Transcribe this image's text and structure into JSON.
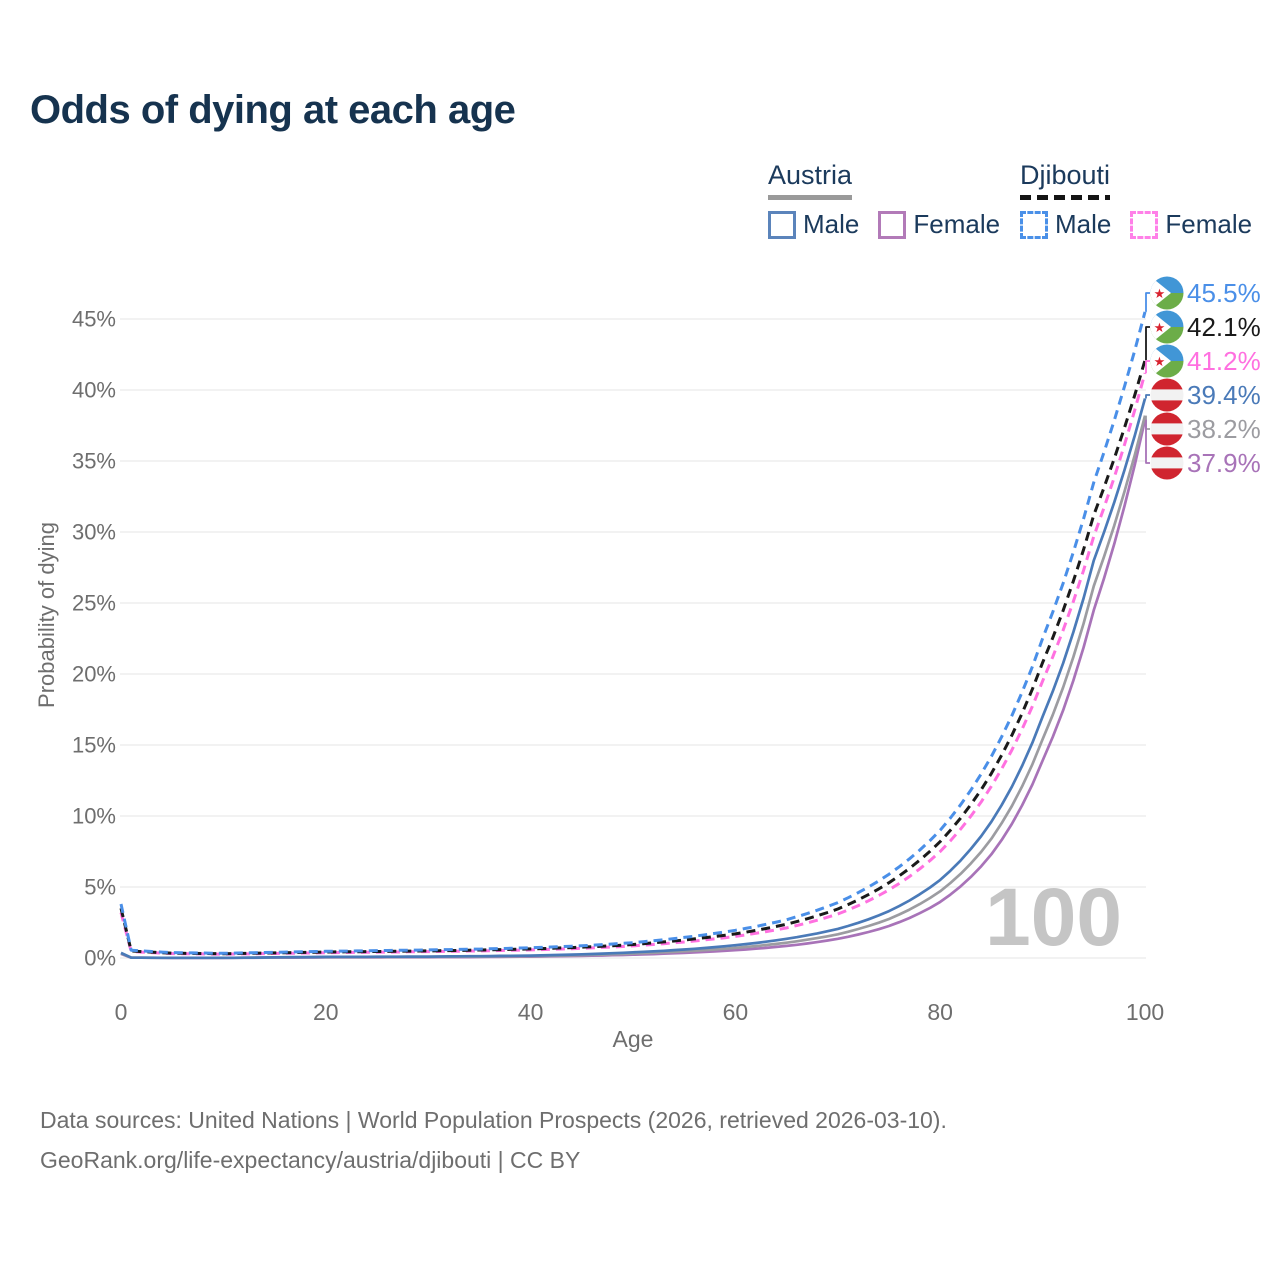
{
  "title": "Odds of dying at each age",
  "watermark_age": "100",
  "legend": {
    "groups": [
      {
        "name": "Austria",
        "underline_style": "solid",
        "underline_color": "#9a9a9a",
        "items": [
          {
            "label": "Male",
            "color": "#5b84bb",
            "dashed": false
          },
          {
            "label": "Female",
            "color": "#b27ab8",
            "dashed": false
          }
        ]
      },
      {
        "name": "Djibouti",
        "underline_style": "dashed",
        "underline_color": "#141414",
        "items": [
          {
            "label": "Male",
            "color": "#4a90e8",
            "dashed": true
          },
          {
            "label": "Female",
            "color": "#ff80e8",
            "dashed": true
          }
        ]
      }
    ]
  },
  "footer": {
    "line1": "Data sources: United Nations | World Population Prospects (2026, retrieved 2026-03-10).",
    "line2": "GeoRank.org/life-expectancy/austria/djibouti | CC BY"
  },
  "colors": {
    "title": "#16334f",
    "axis_text": "#6e6e6e",
    "grid": "#ebebeb",
    "watermark": "#c5c5c5"
  },
  "flags": {
    "austria": {
      "red": "#d0252f",
      "white": "#f2f2f2"
    },
    "djibouti": {
      "blue": "#4196d6",
      "green": "#6cad48",
      "white": "#ffffff",
      "star": "#d8232f"
    }
  },
  "chart_data": {
    "type": "line",
    "title": "Odds of dying at each age",
    "xlabel": "Age",
    "ylabel": "Probability of dying",
    "x_ticks": [
      0,
      20,
      40,
      60,
      80,
      100
    ],
    "y_ticks_pct": [
      0,
      5,
      10,
      15,
      20,
      25,
      30,
      35,
      40,
      45
    ],
    "xlim": [
      0,
      100
    ],
    "ylim_pct": [
      0,
      47
    ],
    "grid": "horizontal-only",
    "legend_position": "top-right",
    "ages": [
      0,
      1,
      5,
      10,
      15,
      20,
      25,
      30,
      35,
      40,
      45,
      50,
      55,
      60,
      65,
      70,
      75,
      80,
      85,
      90,
      95,
      100
    ],
    "series": [
      {
        "name": "Djibouti Male",
        "country": "Djibouti",
        "sex": "Male",
        "color": "#4a8fe8",
        "dashed": true,
        "end_value_pct": 45.5,
        "end_label": "45.5%",
        "values_pct": [
          3.8,
          0.55,
          0.38,
          0.33,
          0.4,
          0.47,
          0.52,
          0.57,
          0.63,
          0.72,
          0.86,
          1.08,
          1.45,
          1.95,
          2.7,
          3.9,
          5.9,
          9.0,
          14.2,
          22.5,
          33.5,
          45.5
        ]
      },
      {
        "name": "Djibouti Both sexes",
        "country": "Djibouti",
        "sex": "Both",
        "color": "#1a1a1a",
        "dashed": true,
        "end_value_pct": 42.1,
        "end_label": "42.1%",
        "values_pct": [
          3.5,
          0.5,
          0.34,
          0.3,
          0.36,
          0.42,
          0.46,
          0.5,
          0.56,
          0.64,
          0.76,
          0.95,
          1.27,
          1.7,
          2.38,
          3.45,
          5.3,
          8.2,
          13.0,
          20.8,
          31.2,
          42.1
        ]
      },
      {
        "name": "Djibouti Female",
        "country": "Djibouti",
        "sex": "Female",
        "color": "#ff70e0",
        "dashed": true,
        "end_value_pct": 41.2,
        "end_label": "41.2%",
        "values_pct": [
          3.2,
          0.46,
          0.31,
          0.27,
          0.32,
          0.37,
          0.41,
          0.45,
          0.5,
          0.57,
          0.68,
          0.85,
          1.13,
          1.52,
          2.12,
          3.1,
          4.8,
          7.5,
          12.1,
          19.5,
          29.7,
          41.2
        ]
      },
      {
        "name": "Austria Male",
        "country": "Austria",
        "sex": "Male",
        "color": "#4a7ab8",
        "dashed": false,
        "end_value_pct": 39.4,
        "end_label": "39.4%",
        "values_pct": [
          0.36,
          0.03,
          0.012,
          0.012,
          0.05,
          0.08,
          0.09,
          0.1,
          0.13,
          0.17,
          0.26,
          0.4,
          0.6,
          0.9,
          1.35,
          2.05,
          3.3,
          5.5,
          9.6,
          17.0,
          28.0,
          39.4
        ]
      },
      {
        "name": "Austria Both sexes",
        "country": "Austria",
        "sex": "Both",
        "color": "#9c9ca1",
        "dashed": false,
        "end_value_pct": 38.2,
        "end_label": "38.2%",
        "values_pct": [
          0.32,
          0.027,
          0.011,
          0.011,
          0.04,
          0.06,
          0.07,
          0.08,
          0.1,
          0.13,
          0.2,
          0.31,
          0.47,
          0.71,
          1.08,
          1.67,
          2.75,
          4.7,
          8.4,
          15.4,
          26.2,
          38.2
        ]
      },
      {
        "name": "Austria Female",
        "country": "Austria",
        "sex": "Female",
        "color": "#a873b8",
        "dashed": false,
        "end_value_pct": 37.9,
        "end_label": "37.9%",
        "values_pct": [
          0.29,
          0.023,
          0.009,
          0.009,
          0.027,
          0.04,
          0.045,
          0.05,
          0.07,
          0.1,
          0.15,
          0.23,
          0.36,
          0.55,
          0.85,
          1.35,
          2.25,
          3.95,
          7.3,
          13.9,
          24.5,
          37.9
        ]
      }
    ]
  }
}
